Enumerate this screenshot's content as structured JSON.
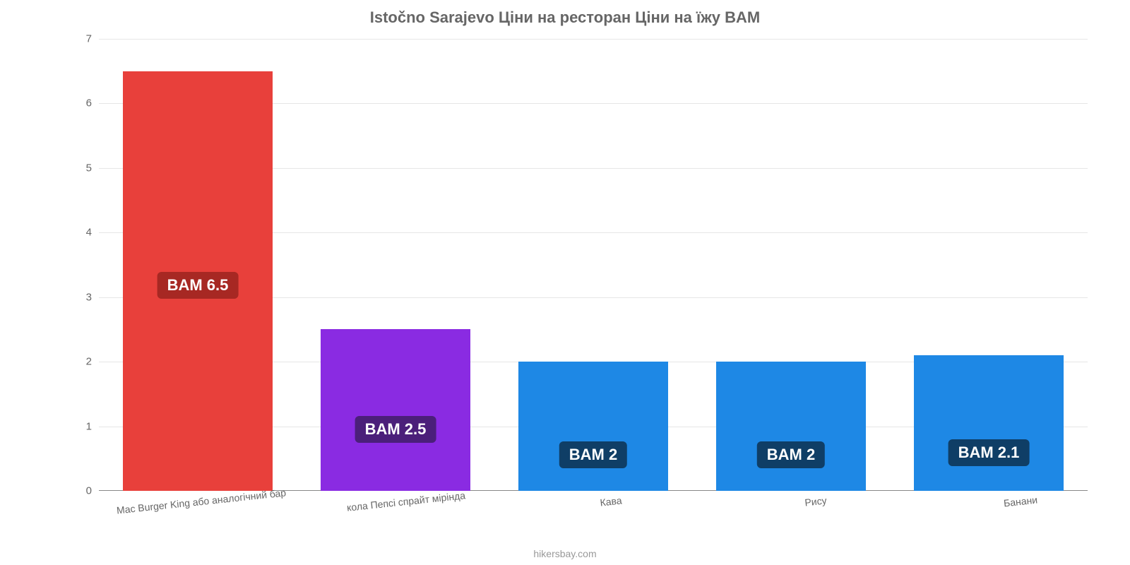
{
  "title": "Istočno Sarajevo Ціни на ресторан Ціни на їжу BAM",
  "title_color": "#666666",
  "title_fontsize": 22,
  "attribution": "hikersbay.com",
  "chart": {
    "type": "bar",
    "background_color": "#ffffff",
    "grid_color": "#e6e6e6",
    "axis_color": "#888888",
    "ylim": [
      0,
      7
    ],
    "yticks": [
      0,
      1,
      2,
      3,
      4,
      5,
      6,
      7
    ],
    "tick_label_color": "#666666",
    "tick_fontsize": 15,
    "bar_width_pct": 76,
    "value_label_fontsize": 22,
    "value_label_text_color": "#ffffff",
    "categories": [
      "Mac Burger King або аналогічний бар",
      "кола Пепсі спрайт мірінда",
      "Кава",
      "Рису",
      "Банани"
    ],
    "values": [
      6.5,
      2.5,
      2,
      2,
      2.1
    ],
    "value_labels": [
      "BAM 6.5",
      "BAM 2.5",
      "BAM 2",
      "BAM 2",
      "BAM 2.1"
    ],
    "bar_colors": [
      "#e8403b",
      "#8a2be2",
      "#1e88e5",
      "#1e88e5",
      "#1e88e5"
    ],
    "badge_colors": [
      "#a72823",
      "#4b1f7a",
      "#0f3e66",
      "#0f3e66",
      "#0f3e66"
    ],
    "badge_offsets_pct": [
      51,
      62,
      72,
      72,
      72
    ],
    "xlabel_fontsize": 14,
    "xlabel_color": "#666666"
  }
}
